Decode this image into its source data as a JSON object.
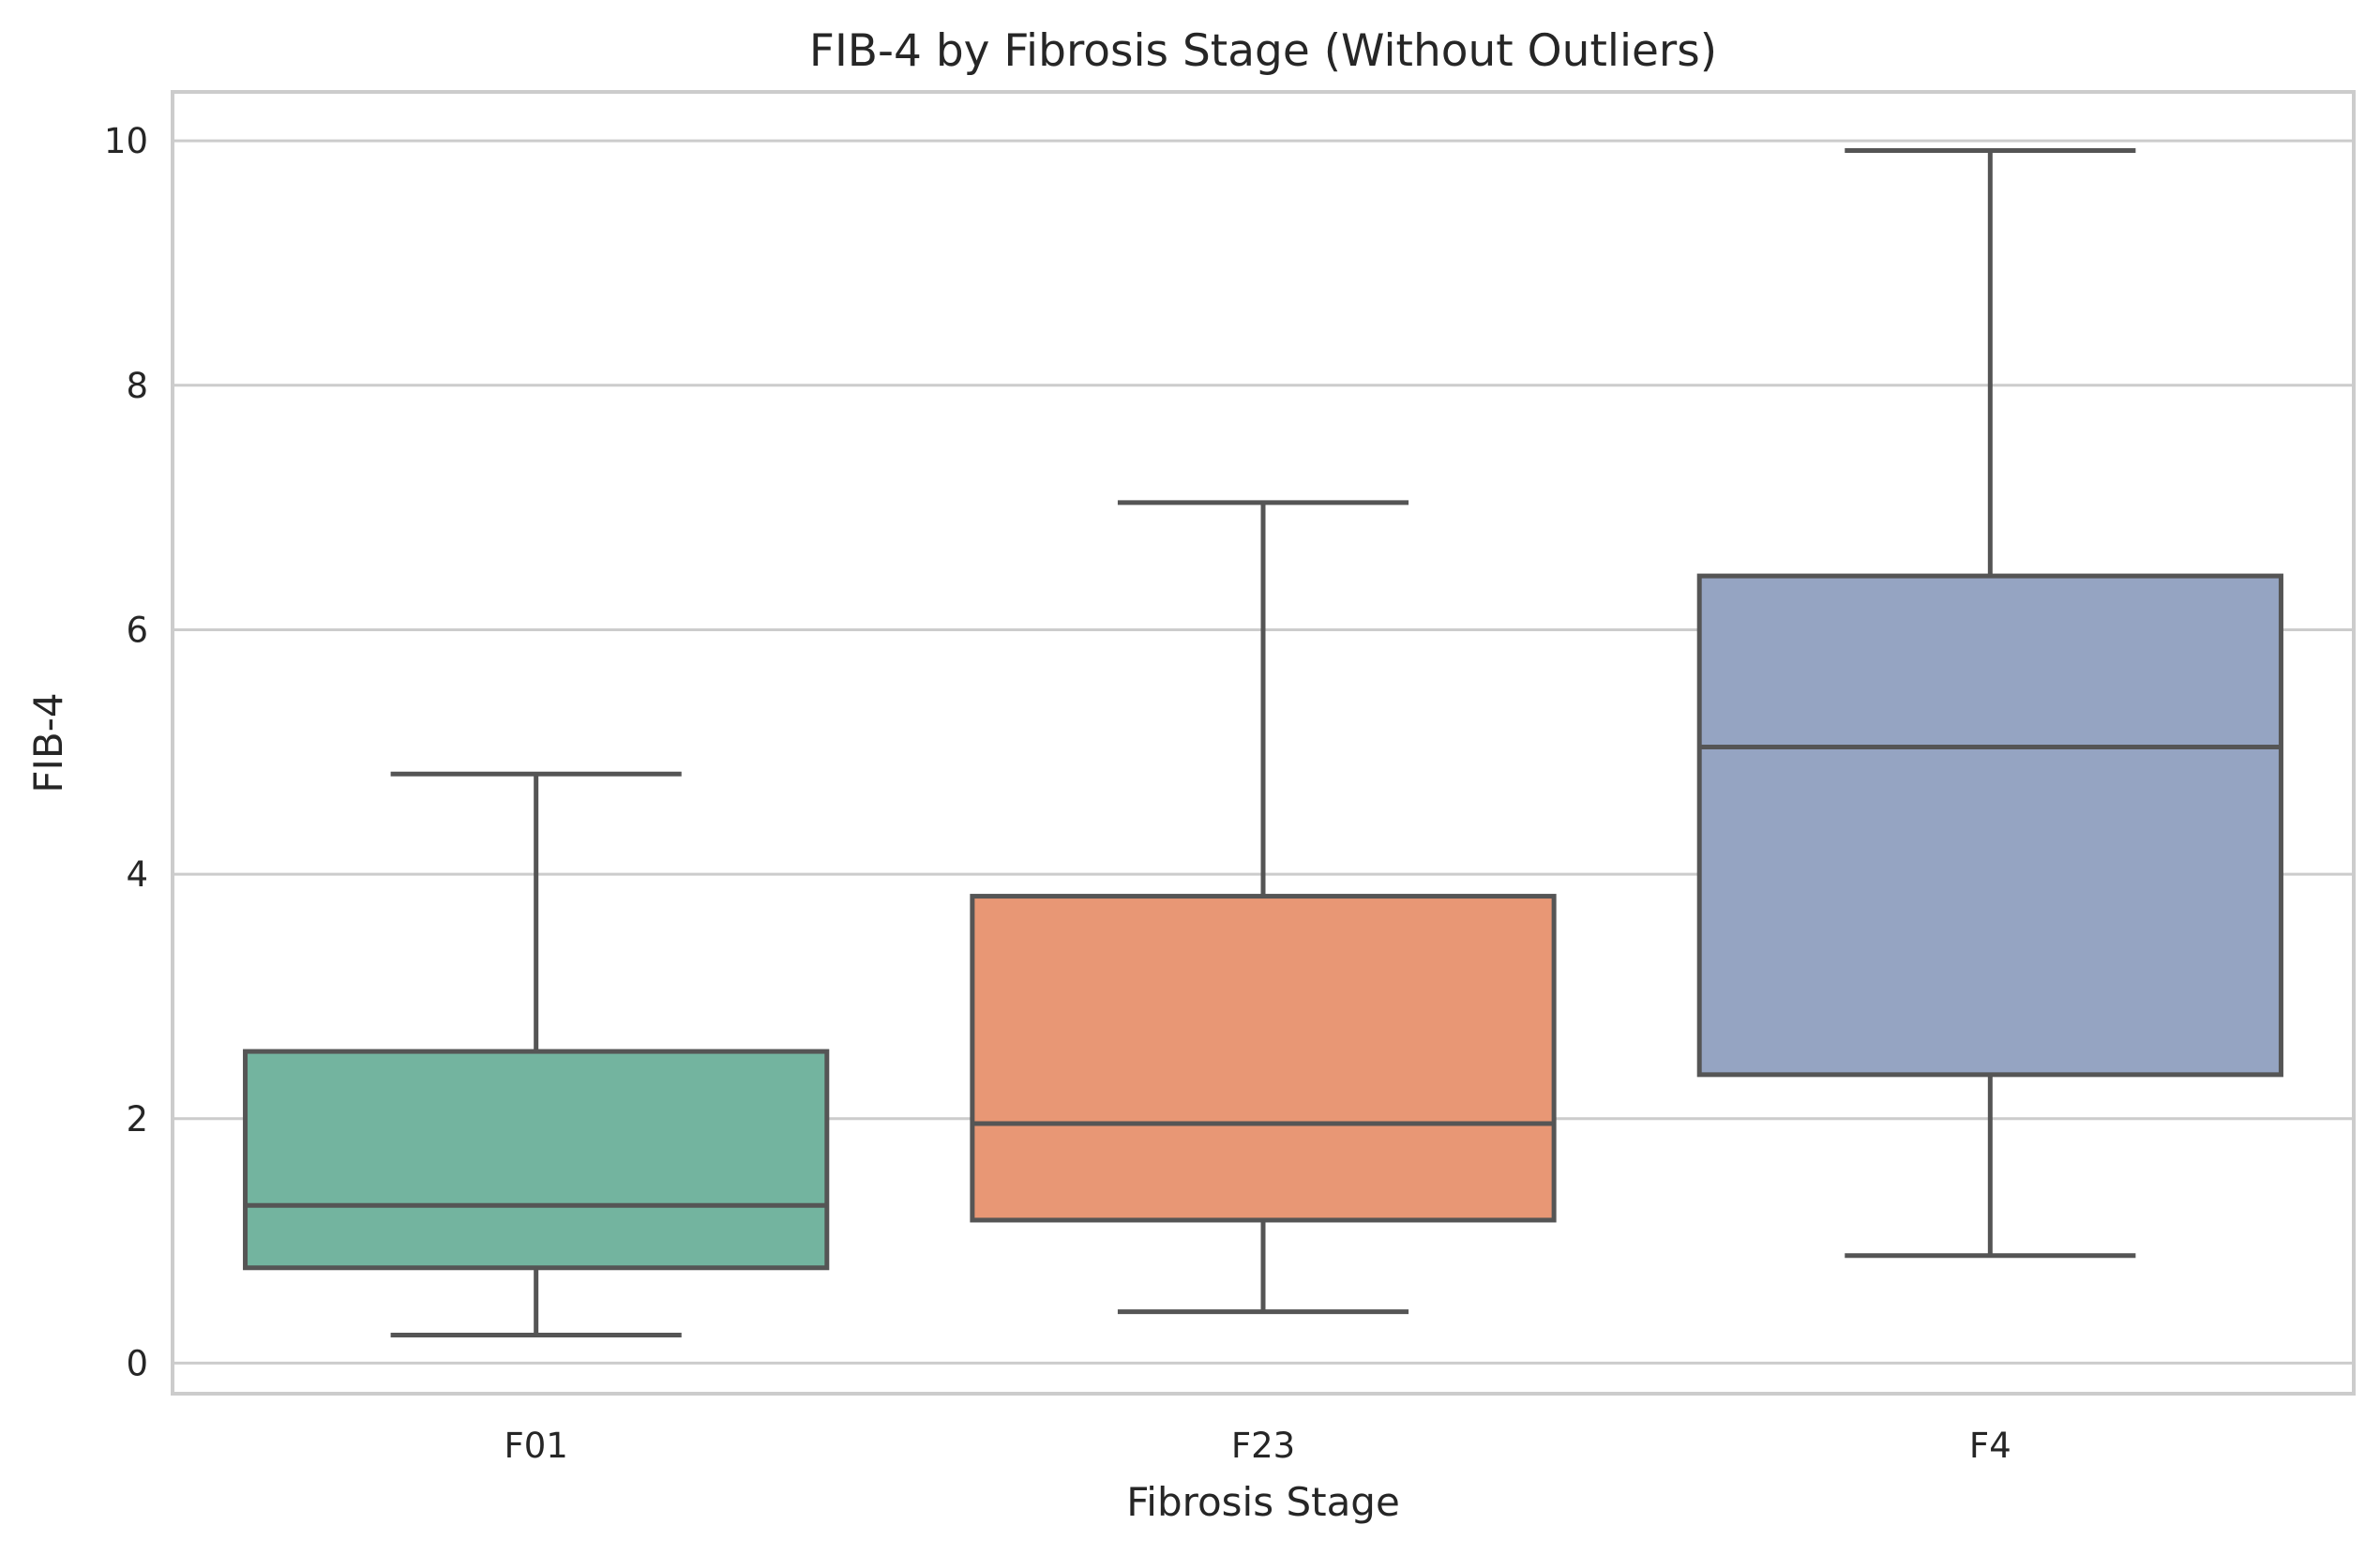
{
  "chart_data": {
    "type": "box",
    "title": "FIB-4 by Fibrosis Stage (Without Outliers)",
    "xlabel": "Fibrosis Stage",
    "ylabel": "FIB-4",
    "ylim": [
      -0.25,
      10.4
    ],
    "yticks": [
      0,
      2,
      4,
      6,
      8,
      10
    ],
    "grid": "horizontal",
    "categories": [
      "F01",
      "F23",
      "F4"
    ],
    "boxes": [
      {
        "category": "F01",
        "whisker_low": 0.23,
        "q1": 0.78,
        "median": 1.29,
        "q3": 2.55,
        "whisker_high": 4.82,
        "color": "#73b49f"
      },
      {
        "category": "F23",
        "whisker_low": 0.42,
        "q1": 1.17,
        "median": 1.96,
        "q3": 3.82,
        "whisker_high": 7.04,
        "color": "#e89775"
      },
      {
        "category": "F4",
        "whisker_low": 0.88,
        "q1": 2.36,
        "median": 5.04,
        "q3": 6.44,
        "whisker_high": 9.92,
        "color": "#95a4c2"
      }
    ],
    "line_color": "#555555",
    "grid_color": "#cccccc"
  }
}
